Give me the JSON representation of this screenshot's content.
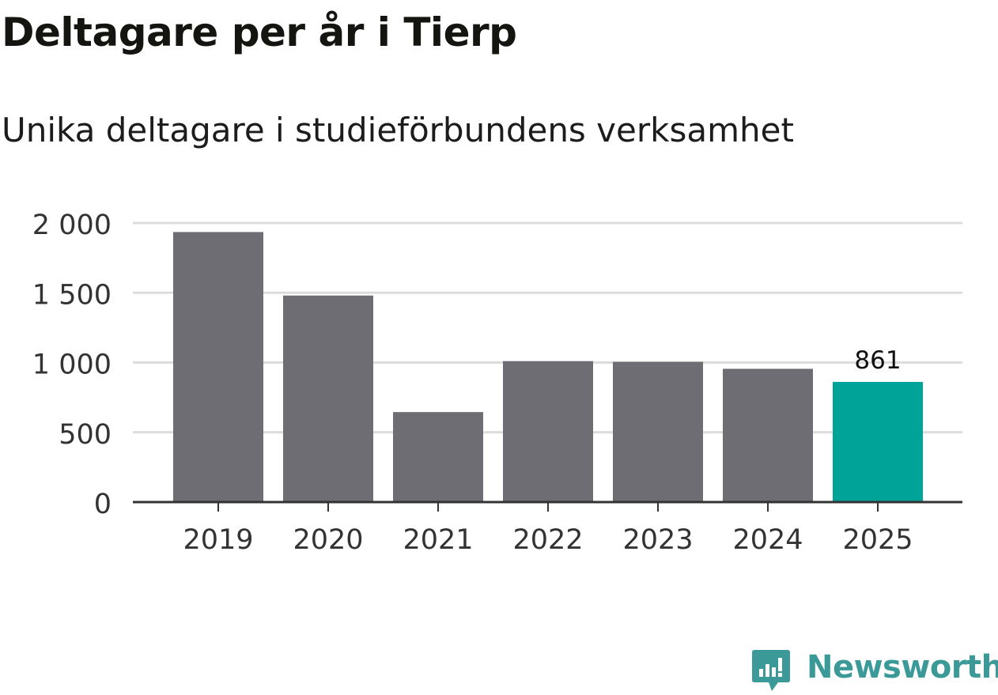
{
  "chart_data": {
    "type": "bar",
    "title": "Deltagare per år i Tierp",
    "subtitle": "Unika deltagare i studieförbundens verksamhet",
    "categories": [
      "2019",
      "2020",
      "2021",
      "2022",
      "2023",
      "2024",
      "2025"
    ],
    "values": [
      1935,
      1480,
      645,
      1010,
      1005,
      955,
      861
    ],
    "highlight_index": 6,
    "data_labels": [
      {
        "index": 6,
        "text": "861"
      }
    ],
    "ylim": [
      0,
      2000
    ],
    "yticks": [
      0,
      500,
      1000,
      1500,
      2000
    ],
    "ytick_labels": [
      "0",
      "500",
      "1 000",
      "1 500",
      "2 000"
    ],
    "xlabel": "",
    "ylabel": "",
    "grid": true,
    "colors": {
      "bar": "#6e6d73",
      "highlight": "#00a398",
      "grid": "#dcdcdc",
      "axis": "#333333",
      "tick_text": "#333333"
    }
  },
  "brand": {
    "name": "Newsworthy",
    "color": "#3b9a97",
    "icon": "newsworthy-logo-icon"
  }
}
